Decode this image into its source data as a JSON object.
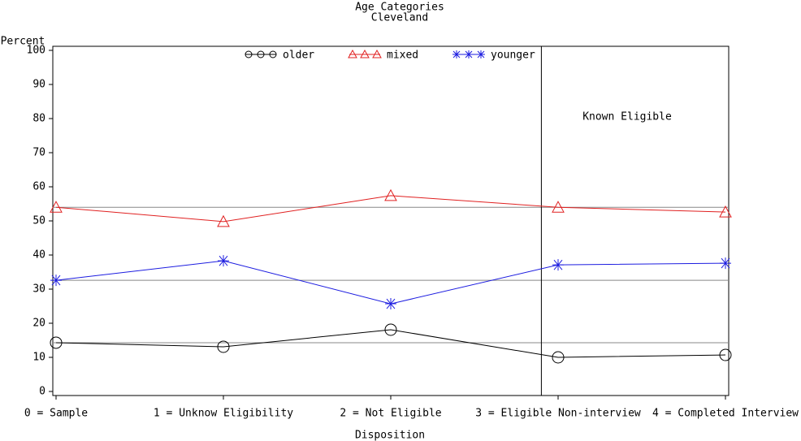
{
  "chart_data": {
    "type": "line",
    "title": "Age Categories",
    "subtitle": "Cleveland",
    "y_label": "Percent",
    "x_label": "Disposition",
    "categories": [
      "0 = Sample",
      "1 = Unknow Eligibility",
      "2 = Not Eligible",
      "3 = Eligible Non-interview",
      "4 = Completed Interview"
    ],
    "series": [
      {
        "name": "older",
        "color": "#000000",
        "marker": "circle",
        "values": [
          14.3,
          13.1,
          18.1,
          10,
          10.7
        ]
      },
      {
        "name": "mixed",
        "color": "#e02020",
        "marker": "triangle",
        "values": [
          54,
          49.8,
          57.4,
          54,
          52.6
        ]
      },
      {
        "name": "younger",
        "color": "#1c1ce0",
        "marker": "star",
        "values": [
          32.6,
          38.3,
          25.7,
          37.1,
          37.6
        ]
      }
    ],
    "ylim": [
      0,
      100
    ],
    "yticks": [
      0,
      10,
      20,
      30,
      40,
      50,
      60,
      70,
      80,
      90,
      100
    ],
    "reference_x": 2.9,
    "annotation": "Known Eligible"
  }
}
